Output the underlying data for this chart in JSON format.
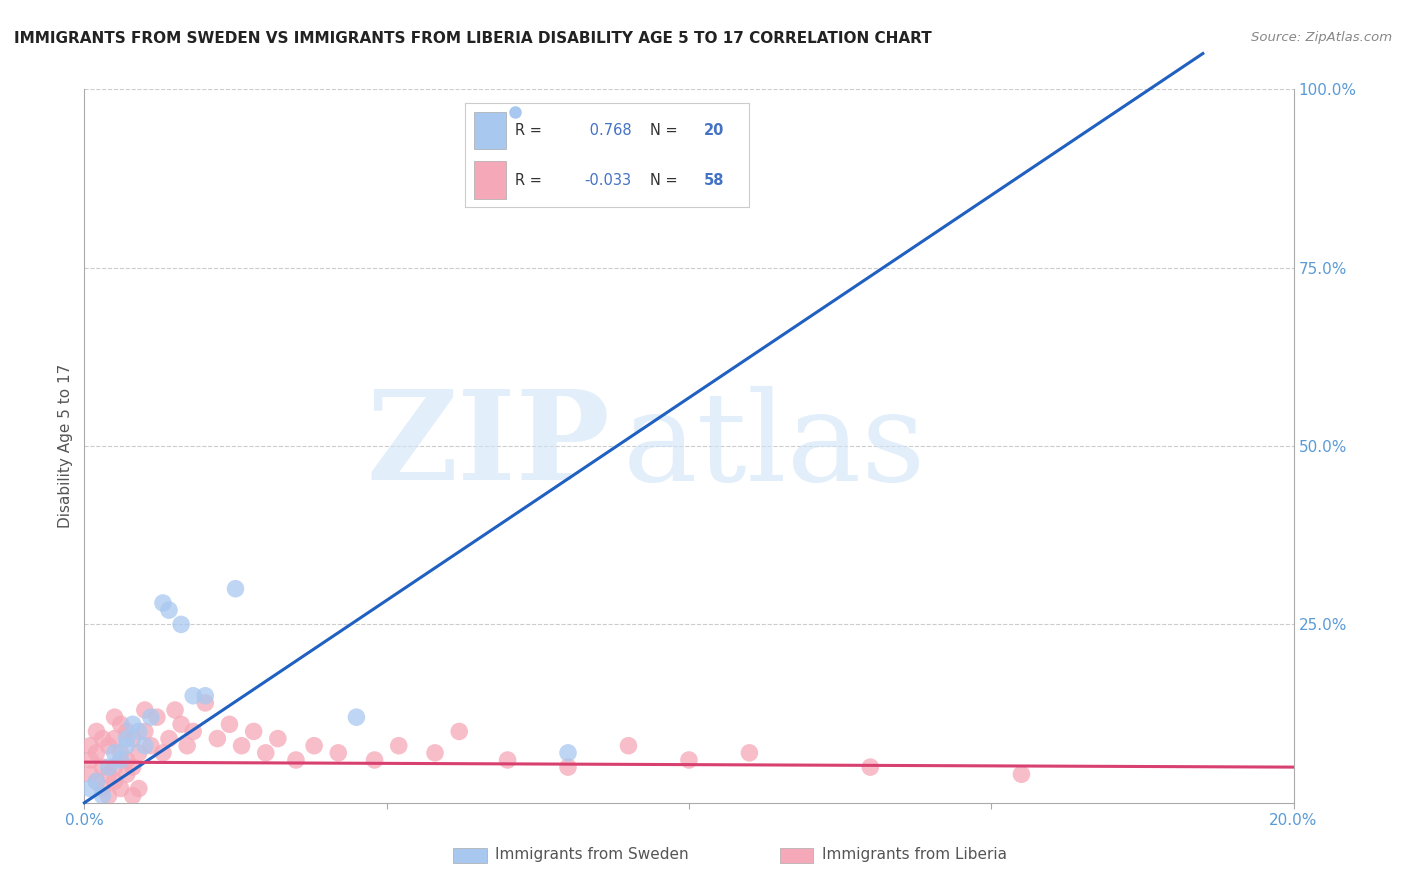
{
  "title": "IMMIGRANTS FROM SWEDEN VS IMMIGRANTS FROM LIBERIA DISABILITY AGE 5 TO 17 CORRELATION CHART",
  "source": "Source: ZipAtlas.com",
  "ylabel": "Disability Age 5 to 17",
  "x_min": 0.0,
  "x_max": 0.2,
  "y_min": 0.0,
  "y_max": 1.0,
  "x_ticks": [
    0.0,
    0.05,
    0.1,
    0.15,
    0.2
  ],
  "x_tick_labels": [
    "0.0%",
    "",
    "",
    "",
    "20.0%"
  ],
  "y_ticks_right": [
    0.25,
    0.5,
    0.75,
    1.0
  ],
  "y_tick_labels_right": [
    "25.0%",
    "50.0%",
    "75.0%",
    "100.0%"
  ],
  "sweden_color": "#A8C8F0",
  "liberia_color": "#F5A8B8",
  "sweden_line_color": "#2060C0",
  "liberia_line_color": "#D84070",
  "sweden_R": 0.768,
  "sweden_N": 20,
  "liberia_R": -0.033,
  "liberia_N": 58,
  "background_color": "#ffffff",
  "grid_color": "#cccccc",
  "sweden_x": [
    0.001,
    0.002,
    0.003,
    0.004,
    0.005,
    0.006,
    0.007,
    0.007,
    0.008,
    0.009,
    0.01,
    0.011,
    0.013,
    0.014,
    0.016,
    0.018,
    0.02,
    0.025,
    0.045,
    0.08
  ],
  "sweden_y": [
    0.02,
    0.03,
    0.01,
    0.05,
    0.07,
    0.06,
    0.09,
    0.08,
    0.11,
    0.1,
    0.08,
    0.12,
    0.28,
    0.27,
    0.25,
    0.15,
    0.15,
    0.3,
    0.12,
    0.07
  ],
  "liberia_x": [
    0.001,
    0.001,
    0.001,
    0.002,
    0.002,
    0.002,
    0.003,
    0.003,
    0.004,
    0.004,
    0.005,
    0.005,
    0.005,
    0.006,
    0.006,
    0.007,
    0.007,
    0.008,
    0.008,
    0.009,
    0.01,
    0.01,
    0.011,
    0.012,
    0.013,
    0.014,
    0.015,
    0.016,
    0.017,
    0.018,
    0.02,
    0.022,
    0.024,
    0.026,
    0.028,
    0.03,
    0.032,
    0.035,
    0.038,
    0.042,
    0.048,
    0.052,
    0.058,
    0.062,
    0.07,
    0.08,
    0.09,
    0.1,
    0.11,
    0.13,
    0.155,
    0.003,
    0.004,
    0.005,
    0.006,
    0.007,
    0.008,
    0.009
  ],
  "liberia_y": [
    0.04,
    0.06,
    0.08,
    0.03,
    0.07,
    0.1,
    0.05,
    0.09,
    0.04,
    0.08,
    0.05,
    0.09,
    0.12,
    0.07,
    0.11,
    0.06,
    0.1,
    0.05,
    0.09,
    0.07,
    0.1,
    0.13,
    0.08,
    0.12,
    0.07,
    0.09,
    0.13,
    0.11,
    0.08,
    0.1,
    0.14,
    0.09,
    0.11,
    0.08,
    0.1,
    0.07,
    0.09,
    0.06,
    0.08,
    0.07,
    0.06,
    0.08,
    0.07,
    0.1,
    0.06,
    0.05,
    0.08,
    0.06,
    0.07,
    0.05,
    0.04,
    0.02,
    0.01,
    0.03,
    0.02,
    0.04,
    0.01,
    0.02
  ],
  "legend_R1": "R = ",
  "legend_V1": " 0.768",
  "legend_N1": "N = ",
  "legend_NV1": "20",
  "legend_R2": "R = ",
  "legend_V2": "-0.033",
  "legend_N2": "N = ",
  "legend_NV2": "58"
}
